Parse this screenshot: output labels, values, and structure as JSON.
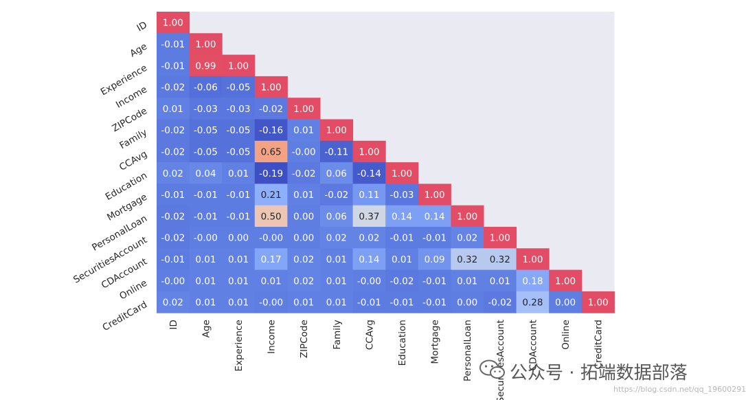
{
  "chart_data": {
    "type": "heatmap",
    "variables": [
      "ID",
      "Age",
      "Experience",
      "Income",
      "ZIPCode",
      "Family",
      "CCAvg",
      "Education",
      "Mortgage",
      "PersonalLoan",
      "SecuritiesAccount",
      "CDAccount",
      "Online",
      "CreditCard"
    ],
    "matrix": [
      [
        "1.00"
      ],
      [
        "-0.01",
        "1.00"
      ],
      [
        "-0.01",
        "0.99",
        "1.00"
      ],
      [
        "-0.02",
        "-0.06",
        "-0.05",
        "1.00"
      ],
      [
        "0.01",
        "-0.03",
        "-0.03",
        "-0.02",
        "1.00"
      ],
      [
        "-0.02",
        "-0.05",
        "-0.05",
        "-0.16",
        "0.01",
        "1.00"
      ],
      [
        "-0.02",
        "-0.05",
        "-0.05",
        "0.65",
        "-0.00",
        "-0.11",
        "1.00"
      ],
      [
        "0.02",
        "0.04",
        "0.01",
        "-0.19",
        "-0.02",
        "0.06",
        "-0.14",
        "1.00"
      ],
      [
        "-0.01",
        "-0.01",
        "-0.01",
        "0.21",
        "0.01",
        "-0.02",
        "0.11",
        "-0.03",
        "1.00"
      ],
      [
        "-0.02",
        "-0.01",
        "-0.01",
        "0.50",
        "0.00",
        "0.06",
        "0.37",
        "0.14",
        "0.14",
        "1.00"
      ],
      [
        "-0.02",
        "-0.00",
        "0.00",
        "-0.00",
        "0.00",
        "0.02",
        "0.02",
        "-0.01",
        "-0.01",
        "0.02",
        "1.00"
      ],
      [
        "-0.01",
        "0.01",
        "0.01",
        "0.17",
        "0.02",
        "0.01",
        "0.14",
        "0.01",
        "0.09",
        "0.32",
        "0.32",
        "1.00"
      ],
      [
        "-0.00",
        "0.01",
        "0.01",
        "0.01",
        "0.02",
        "0.01",
        "-0.00",
        "-0.02",
        "-0.01",
        "0.01",
        "0.01",
        "0.18",
        "1.00"
      ],
      [
        "0.02",
        "0.01",
        "0.01",
        "-0.00",
        "0.01",
        "0.01",
        "-0.01",
        "-0.01",
        "-0.01",
        "0.00",
        "-0.02",
        "0.28",
        "0.00",
        "1.00"
      ]
    ],
    "mask": "upper-triangle",
    "colormap": "coolwarm",
    "value_range": [
      -0.2,
      1.0
    ],
    "annotations": true
  },
  "watermark": {
    "main": "公众号 · 拓端数据部落",
    "url": "https://blog.csdn.net/qq_19600291"
  }
}
